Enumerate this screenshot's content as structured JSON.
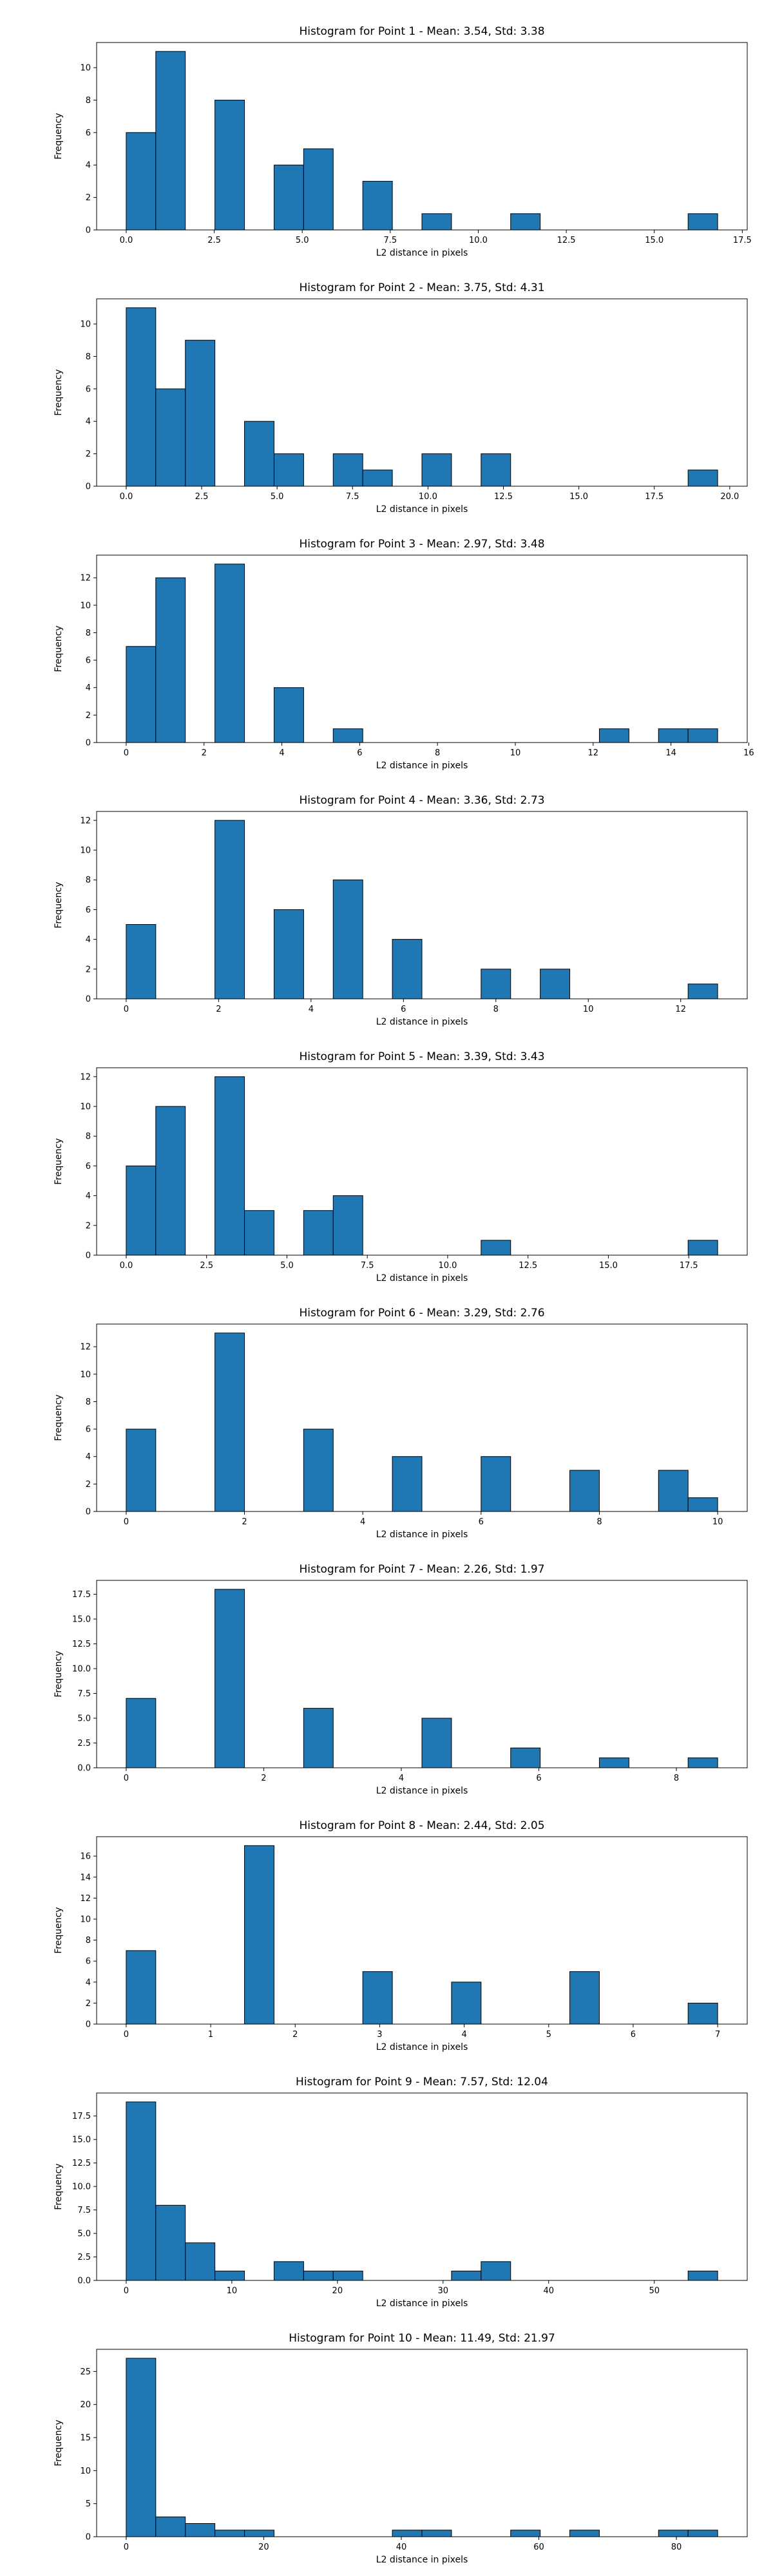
{
  "chart_data": [
    {
      "type": "bar",
      "title": "Histogram for Point 1 - Mean: 3.54, Std: 3.38",
      "xlabel": "L2 distance in pixels",
      "ylabel": "Frequency",
      "xlim": [
        -0.84,
        17.64
      ],
      "ylim": [
        0,
        11.55
      ],
      "xticks": [
        0.0,
        2.5,
        5.0,
        7.5,
        10.0,
        12.5,
        15.0,
        17.5
      ],
      "xtick_labels": [
        "0.0",
        "2.5",
        "5.0",
        "7.5",
        "10.0",
        "12.5",
        "15.0",
        "17.5"
      ],
      "yticks": [
        0,
        2,
        4,
        6,
        8,
        10
      ],
      "ytick_labels": [
        "0",
        "2",
        "4",
        "6",
        "8",
        "10"
      ],
      "bin_start": 0.0,
      "bin_width": 0.84,
      "values": [
        6,
        11,
        0,
        8,
        0,
        4,
        5,
        0,
        3,
        0,
        1,
        0,
        0,
        1,
        0,
        0,
        0,
        0,
        0,
        1
      ],
      "color": "#1f77b4"
    },
    {
      "type": "bar",
      "title": "Histogram for Point 2 - Mean: 3.75, Std: 4.31",
      "xlabel": "L2 distance in pixels",
      "ylabel": "Frequency",
      "xlim": [
        -0.98,
        20.58
      ],
      "ylim": [
        0,
        11.55
      ],
      "xticks": [
        0.0,
        2.5,
        5.0,
        7.5,
        10.0,
        12.5,
        15.0,
        17.5,
        20.0
      ],
      "xtick_labels": [
        "0.0",
        "2.5",
        "5.0",
        "7.5",
        "10.0",
        "12.5",
        "15.0",
        "17.5",
        "20.0"
      ],
      "yticks": [
        0,
        2,
        4,
        6,
        8,
        10
      ],
      "ytick_labels": [
        "0",
        "2",
        "4",
        "6",
        "8",
        "10"
      ],
      "bin_start": 0.0,
      "bin_width": 0.98,
      "values": [
        11,
        6,
        9,
        0,
        4,
        2,
        0,
        2,
        1,
        0,
        2,
        0,
        2,
        0,
        0,
        0,
        0,
        0,
        0,
        1
      ],
      "color": "#1f77b4"
    },
    {
      "type": "bar",
      "title": "Histogram for Point 3 - Mean: 2.97, Std: 3.48",
      "xlabel": "L2 distance in pixels",
      "ylabel": "Frequency",
      "xlim": [
        -0.76,
        15.96
      ],
      "ylim": [
        0,
        13.65
      ],
      "xticks": [
        0,
        2,
        4,
        6,
        8,
        10,
        12,
        14,
        16
      ],
      "xtick_labels": [
        "0",
        "2",
        "4",
        "6",
        "8",
        "10",
        "12",
        "14",
        "16"
      ],
      "yticks": [
        0,
        2,
        4,
        6,
        8,
        10,
        12
      ],
      "ytick_labels": [
        "0",
        "2",
        "4",
        "6",
        "8",
        "10",
        "12"
      ],
      "bin_start": 0.0,
      "bin_width": 0.76,
      "values": [
        7,
        12,
        0,
        13,
        0,
        4,
        0,
        1,
        0,
        0,
        0,
        0,
        0,
        0,
        0,
        0,
        1,
        0,
        1,
        1
      ],
      "color": "#1f77b4"
    },
    {
      "type": "bar",
      "title": "Histogram for Point 4 - Mean: 3.36, Std: 2.73",
      "xlabel": "L2 distance in pixels",
      "ylabel": "Frequency",
      "xlim": [
        -0.64,
        13.44
      ],
      "ylim": [
        0,
        12.6
      ],
      "xticks": [
        0,
        2,
        4,
        6,
        8,
        10,
        12
      ],
      "xtick_labels": [
        "0",
        "2",
        "4",
        "6",
        "8",
        "10",
        "12"
      ],
      "yticks": [
        0,
        2,
        4,
        6,
        8,
        10,
        12
      ],
      "ytick_labels": [
        "0",
        "2",
        "4",
        "6",
        "8",
        "10",
        "12"
      ],
      "bin_start": 0.0,
      "bin_width": 0.64,
      "values": [
        5,
        0,
        0,
        12,
        0,
        6,
        0,
        8,
        0,
        4,
        0,
        0,
        2,
        0,
        2,
        0,
        0,
        0,
        0,
        1
      ],
      "color": "#1f77b4"
    },
    {
      "type": "bar",
      "title": "Histogram for Point 5 - Mean: 3.39, Std: 3.43",
      "xlabel": "L2 distance in pixels",
      "ylabel": "Frequency",
      "xlim": [
        -0.92,
        19.32
      ],
      "ylim": [
        0,
        12.6
      ],
      "xticks": [
        0.0,
        2.5,
        5.0,
        7.5,
        10.0,
        12.5,
        15.0,
        17.5
      ],
      "xtick_labels": [
        "0.0",
        "2.5",
        "5.0",
        "7.5",
        "10.0",
        "12.5",
        "15.0",
        "17.5"
      ],
      "yticks": [
        0,
        2,
        4,
        6,
        8,
        10,
        12
      ],
      "ytick_labels": [
        "0",
        "2",
        "4",
        "6",
        "8",
        "10",
        "12"
      ],
      "bin_start": 0.0,
      "bin_width": 0.92,
      "values": [
        6,
        10,
        0,
        12,
        3,
        0,
        3,
        4,
        0,
        0,
        0,
        0,
        1,
        0,
        0,
        0,
        0,
        0,
        0,
        1
      ],
      "color": "#1f77b4"
    },
    {
      "type": "bar",
      "title": "Histogram for Point 6 - Mean: 3.29, Std: 2.76",
      "xlabel": "L2 distance in pixels",
      "ylabel": "Frequency",
      "xlim": [
        -0.5,
        10.5
      ],
      "ylim": [
        0,
        13.65
      ],
      "xticks": [
        0,
        2,
        4,
        6,
        8,
        10
      ],
      "xtick_labels": [
        "0",
        "2",
        "4",
        "6",
        "8",
        "10"
      ],
      "yticks": [
        0,
        2,
        4,
        6,
        8,
        10,
        12
      ],
      "ytick_labels": [
        "0",
        "2",
        "4",
        "6",
        "8",
        "10",
        "12"
      ],
      "bin_start": 0.0,
      "bin_width": 0.5,
      "values": [
        6,
        0,
        0,
        13,
        0,
        0,
        6,
        0,
        0,
        4,
        0,
        0,
        4,
        0,
        0,
        3,
        0,
        0,
        3,
        1
      ],
      "color": "#1f77b4"
    },
    {
      "type": "bar",
      "title": "Histogram for Point 7 - Mean: 2.26, Std: 1.97",
      "xlabel": "L2 distance in pixels",
      "ylabel": "Frequency",
      "xlim": [
        -0.43,
        9.03
      ],
      "ylim": [
        0,
        18.9
      ],
      "xticks": [
        0,
        2,
        4,
        6,
        8
      ],
      "xtick_labels": [
        "0",
        "2",
        "4",
        "6",
        "8"
      ],
      "yticks": [
        0.0,
        2.5,
        5.0,
        7.5,
        10.0,
        12.5,
        15.0,
        17.5
      ],
      "ytick_labels": [
        "0.0",
        "2.5",
        "5.0",
        "7.5",
        "10.0",
        "12.5",
        "15.0",
        "17.5"
      ],
      "bin_start": 0.0,
      "bin_width": 0.43,
      "values": [
        7,
        0,
        0,
        18,
        0,
        0,
        6,
        0,
        0,
        0,
        5,
        0,
        0,
        2,
        0,
        0,
        1,
        0,
        0,
        1
      ],
      "color": "#1f77b4"
    },
    {
      "type": "bar",
      "title": "Histogram for Point 8 - Mean: 2.44, Std: 2.05",
      "xlabel": "L2 distance in pixels",
      "ylabel": "Frequency",
      "xlim": [
        -0.35,
        7.35
      ],
      "ylim": [
        0,
        17.85
      ],
      "xticks": [
        0,
        1,
        2,
        3,
        4,
        5,
        6,
        7
      ],
      "xtick_labels": [
        "0",
        "1",
        "2",
        "3",
        "4",
        "5",
        "6",
        "7"
      ],
      "yticks": [
        0,
        2,
        4,
        6,
        8,
        10,
        12,
        14,
        16
      ],
      "ytick_labels": [
        "0",
        "2",
        "4",
        "6",
        "8",
        "10",
        "12",
        "14",
        "16"
      ],
      "bin_start": 0.0,
      "bin_width": 0.35,
      "values": [
        7,
        0,
        0,
        0,
        17,
        0,
        0,
        0,
        5,
        0,
        0,
        4,
        0,
        0,
        0,
        5,
        0,
        0,
        0,
        2
      ],
      "color": "#1f77b4"
    },
    {
      "type": "bar",
      "title": "Histogram for Point 9 - Mean: 7.57, Std: 12.04",
      "xlabel": "L2 distance in pixels",
      "ylabel": "Frequency",
      "xlim": [
        -2.8,
        58.8
      ],
      "ylim": [
        0,
        19.95
      ],
      "xticks": [
        0,
        10,
        20,
        30,
        40,
        50
      ],
      "xtick_labels": [
        "0",
        "10",
        "20",
        "30",
        "40",
        "50"
      ],
      "yticks": [
        0.0,
        2.5,
        5.0,
        7.5,
        10.0,
        12.5,
        15.0,
        17.5
      ],
      "ytick_labels": [
        "0.0",
        "2.5",
        "5.0",
        "7.5",
        "10.0",
        "12.5",
        "15.0",
        "17.5"
      ],
      "bin_start": 0.0,
      "bin_width": 2.8,
      "values": [
        19,
        8,
        4,
        1,
        0,
        2,
        1,
        1,
        0,
        0,
        0,
        1,
        2,
        0,
        0,
        0,
        0,
        0,
        0,
        1
      ],
      "color": "#1f77b4"
    },
    {
      "type": "bar",
      "title": "Histogram for Point 10 - Mean: 11.49, Std: 21.97",
      "xlabel": "L2 distance in pixels",
      "ylabel": "Frequency",
      "xlim": [
        -4.3,
        90.3
      ],
      "ylim": [
        0,
        28.35
      ],
      "xticks": [
        0,
        20,
        40,
        60,
        80
      ],
      "xtick_labels": [
        "0",
        "20",
        "40",
        "60",
        "80"
      ],
      "yticks": [
        0,
        5,
        10,
        15,
        20,
        25
      ],
      "ytick_labels": [
        "0",
        "5",
        "10",
        "15",
        "20",
        "25"
      ],
      "bin_start": 0.0,
      "bin_width": 4.3,
      "values": [
        27,
        3,
        2,
        1,
        1,
        0,
        0,
        0,
        0,
        1,
        1,
        0,
        0,
        1,
        0,
        1,
        0,
        0,
        1,
        1
      ],
      "color": "#1f77b4"
    }
  ]
}
